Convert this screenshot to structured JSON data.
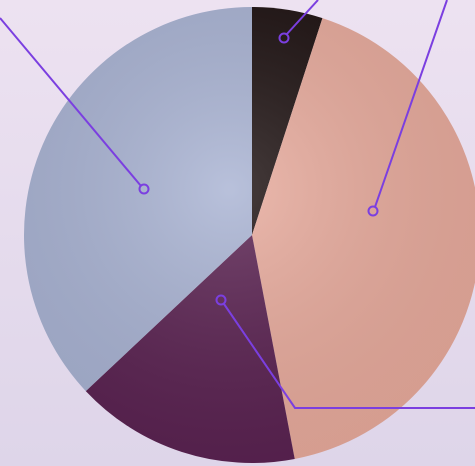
{
  "chart_data": {
    "type": "pie",
    "values": [
      5,
      42,
      16,
      37
    ],
    "colors": [
      "#1e1212",
      "#e8ab9d",
      "#5b2352",
      "#a9b3d3"
    ],
    "start_angle": 0,
    "direction": "clockwise"
  }
}
